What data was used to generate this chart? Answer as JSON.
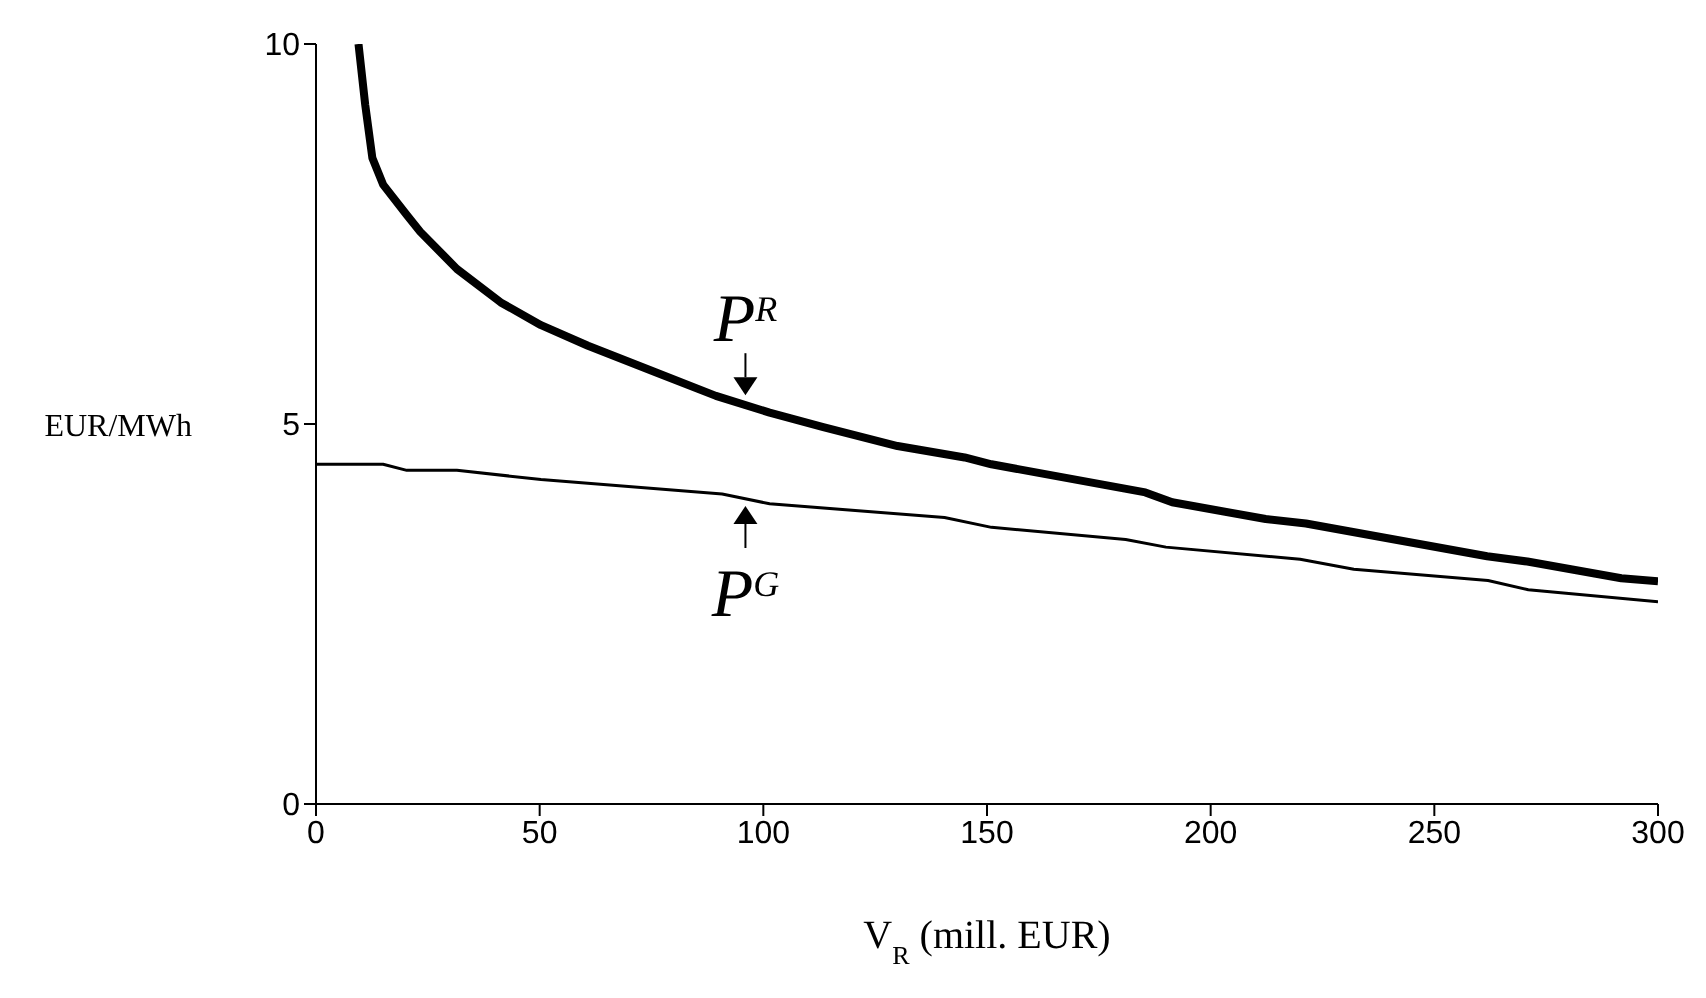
{
  "chart_data": {
    "type": "line",
    "xlabel": "V$_{R}$ (mill. EUR)",
    "ylabel": "EUR/MWh",
    "xlim": [
      0,
      300
    ],
    "ylim": [
      0,
      10
    ],
    "xticks": [
      0,
      50,
      100,
      150,
      200,
      250,
      300
    ],
    "yticks": [
      0,
      5,
      10
    ],
    "series": [
      {
        "color": "#000000",
        "x": [
          9.5,
          11,
          12.6,
          15,
          20.3,
          23.3,
          31.5,
          41.3,
          50.3,
          60.8,
          75.9,
          89.4,
          101.4,
          113.4,
          130,
          145,
          151,
          185.4,
          191.4,
          212.3,
          221.3,
          261.8,
          270.8,
          291.8,
          300
        ],
        "values": [
          10,
          9.2,
          8.5,
          8.15,
          7.75,
          7.53,
          7.04,
          6.6,
          6.3,
          6.03,
          5.68,
          5.37,
          5.15,
          4.96,
          4.71,
          4.56,
          4.47,
          4.1,
          3.97,
          3.75,
          3.69,
          3.26,
          3.19,
          2.97,
          2.93
        ]
      },
      {
        "color": "#000000",
        "x": [
          0,
          15,
          20.3,
          31.5,
          50.3,
          90.8,
          101.4,
          140.5,
          151,
          181,
          190,
          220,
          232,
          262,
          271,
          300
        ],
        "values": [
          4.47,
          4.47,
          4.39,
          4.39,
          4.27,
          4.08,
          3.95,
          3.77,
          3.64,
          3.48,
          3.38,
          3.22,
          3.09,
          2.94,
          2.82,
          2.66
        ]
      }
    ],
    "annotations": [
      {
        "text": "P$^{R}$",
        "x": 96,
        "y": 5.3
      },
      {
        "text": "P$^{G}$",
        "x": 96,
        "y": 4.0
      }
    ]
  }
}
